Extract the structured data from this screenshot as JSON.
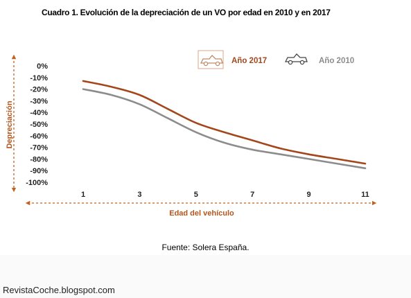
{
  "title": "Cuadro 1. Evolución de la depreciación de un VO por edad en 2010 y en 2017",
  "source": "Fuente: Solera España.",
  "watermark": "RevistaCoche.blogspot.com",
  "colors": {
    "brand": "#b5541b",
    "series_2017": "#a3471b",
    "series_2010": "#8c8c8c"
  },
  "chart_data": {
    "type": "line",
    "xlabel": "Edad del vehículo",
    "ylabel": "Depreciación",
    "x_ticks": [
      1,
      3,
      5,
      7,
      9,
      11
    ],
    "y_ticks": [
      "0%",
      "-10%",
      "-20%",
      "-30%",
      "-40%",
      "-50%",
      "-60%",
      "-70%",
      "-80%",
      "-90%",
      "-100%"
    ],
    "xlim": [
      1,
      11
    ],
    "ylim": [
      -100,
      0
    ],
    "grid": false,
    "legend_position": "top-right",
    "series": [
      {
        "name": "Año 2017",
        "color": "#a3471b",
        "icon": "car-icon",
        "x": [
          1,
          2,
          3,
          4,
          5,
          6,
          7,
          8,
          9,
          10,
          11
        ],
        "y": [
          -13,
          -18,
          -25,
          -37,
          -49,
          -57,
          -64,
          -71,
          -76,
          -80,
          -84
        ]
      },
      {
        "name": "Año 2010",
        "color": "#8c8c8c",
        "icon": "car-icon",
        "x": [
          1,
          2,
          3,
          4,
          5,
          6,
          7,
          8,
          9,
          10,
          11
        ],
        "y": [
          -20,
          -25,
          -33,
          -45,
          -57,
          -66,
          -72,
          -76,
          -80,
          -84,
          -88
        ]
      }
    ]
  }
}
